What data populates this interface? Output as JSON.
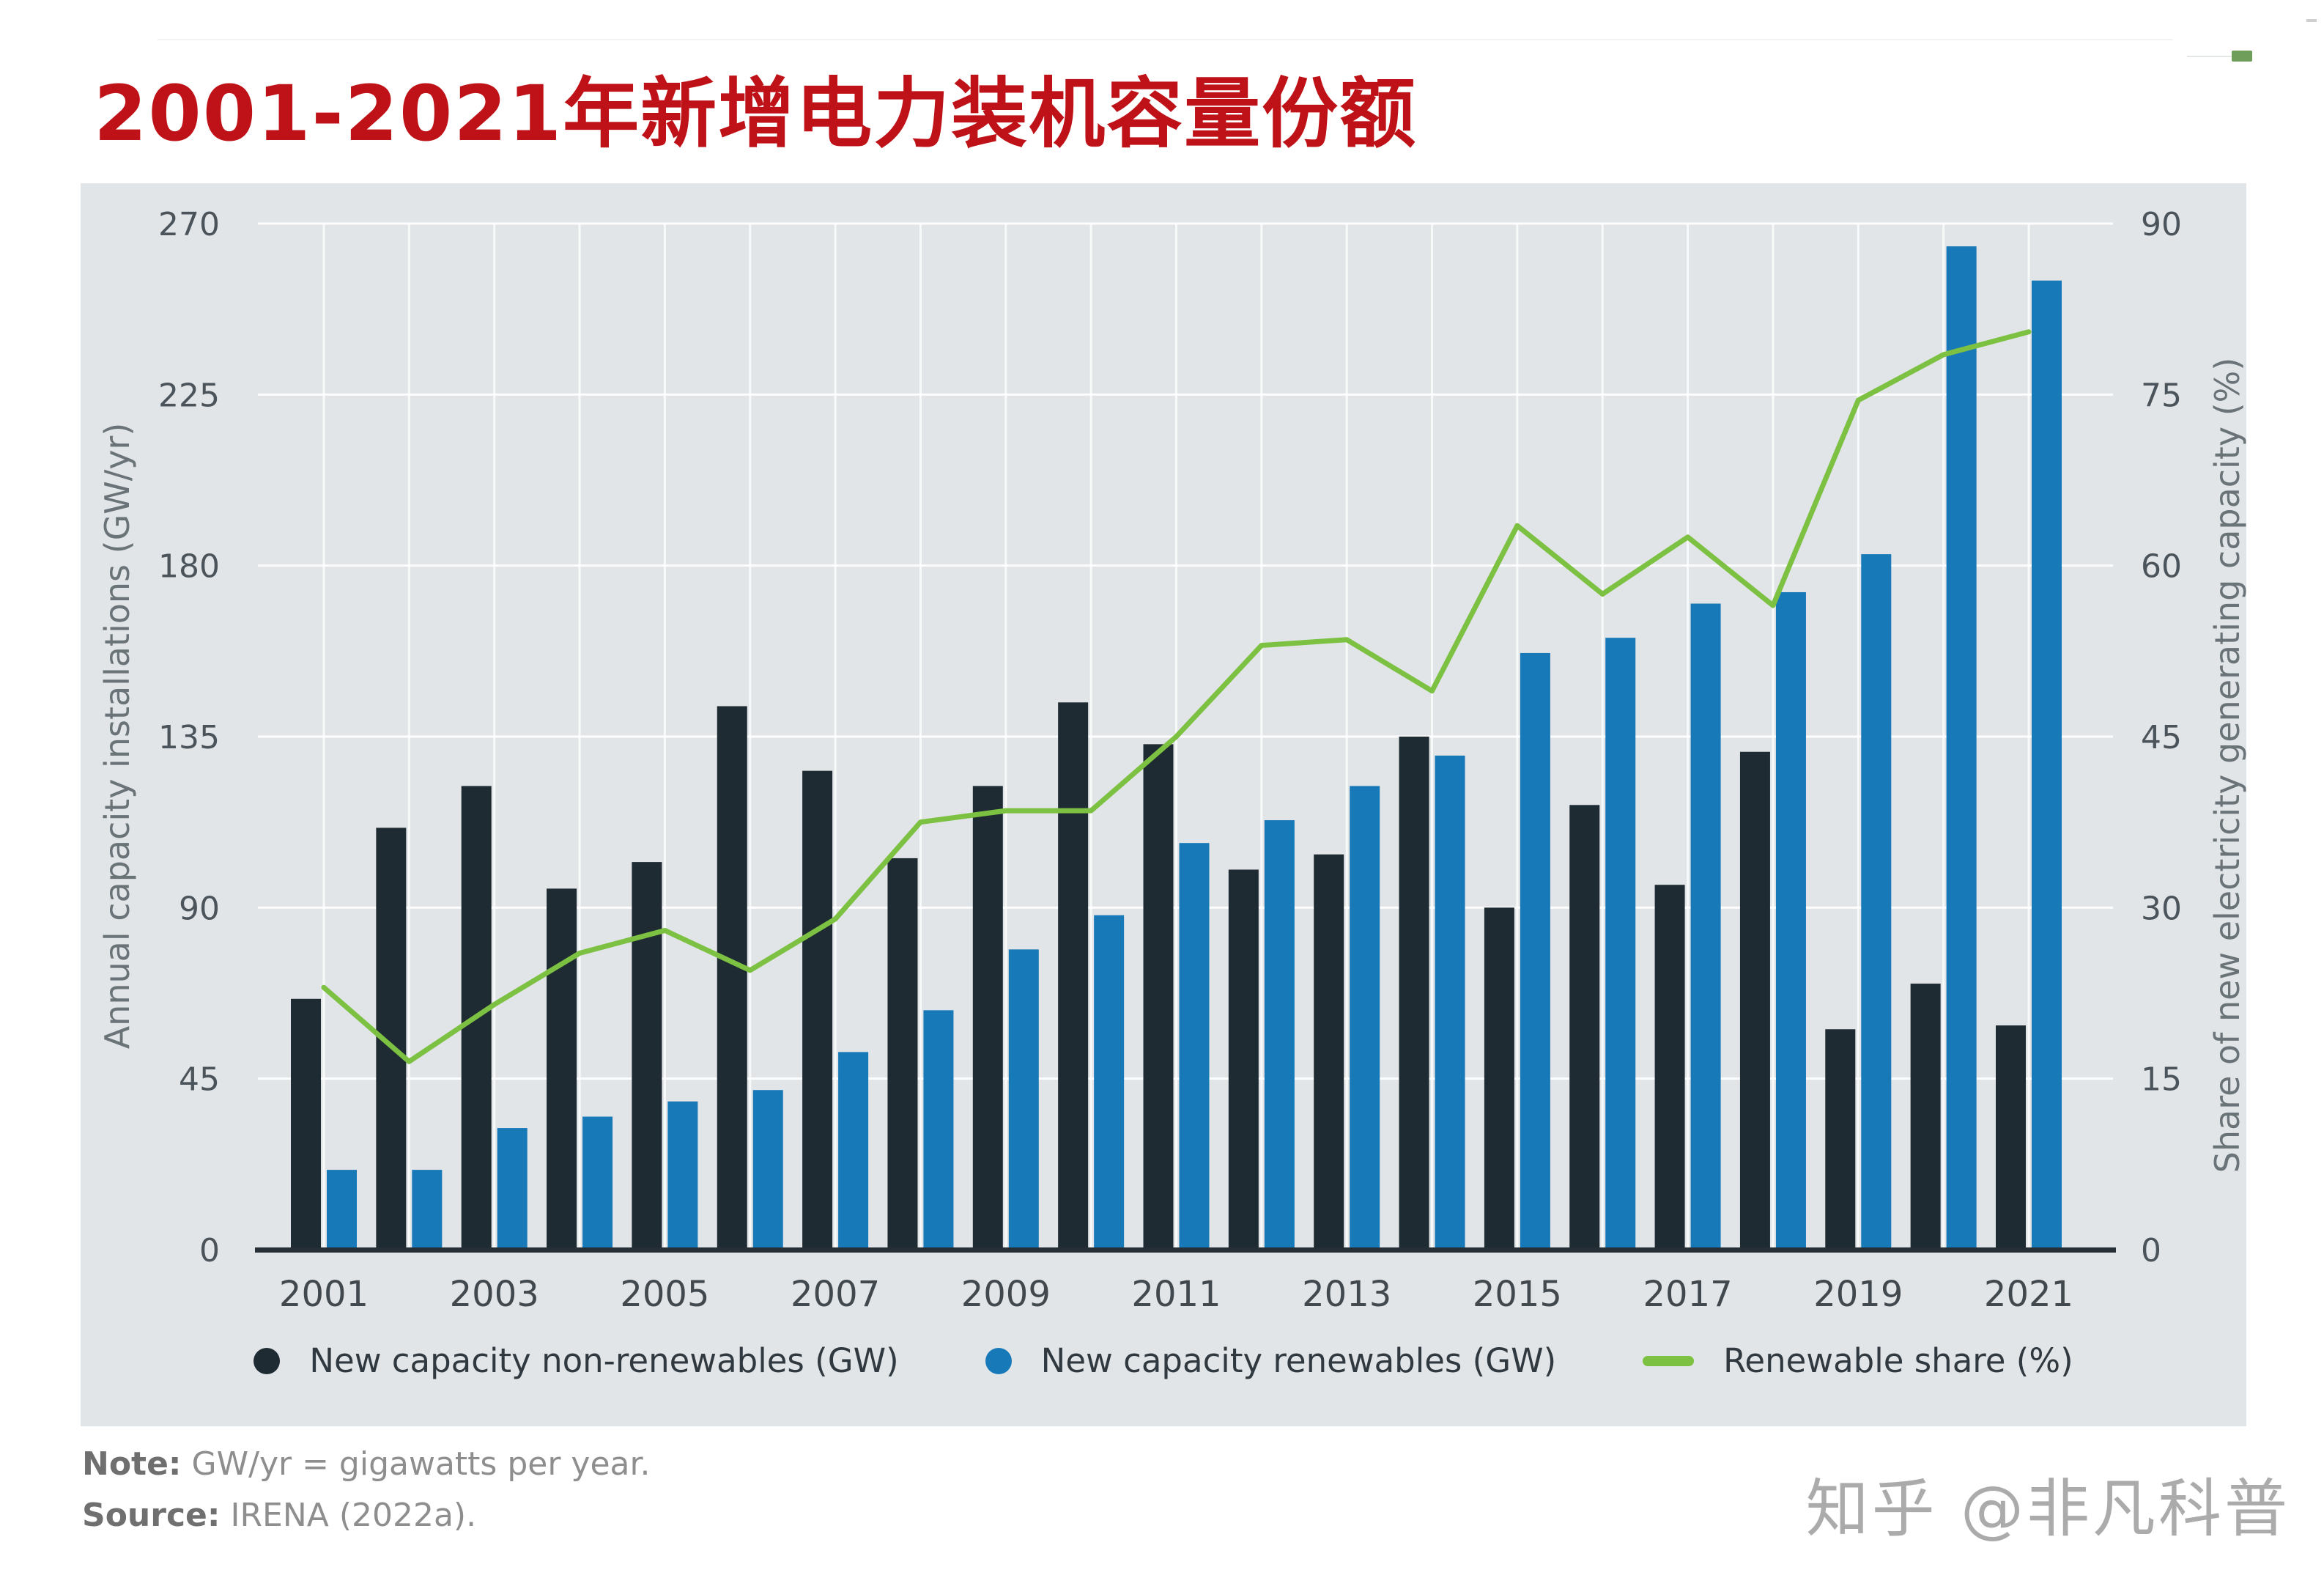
{
  "title": "2001-2021年新增电力装机容量份额",
  "colors": {
    "title_red": "#BF1218",
    "panel_bg": "#E2E5E8",
    "bar_non_renewables": "#1F2B33",
    "bar_renewables": "#1879B8",
    "share_line": "#7CC142",
    "axis_text": "#4B545A",
    "baseline": "#262F36"
  },
  "chart_data": {
    "type": "bar",
    "title": "2001-2021年新增电力装机容量份额",
    "categories": [
      2001,
      2002,
      2003,
      2004,
      2005,
      2006,
      2007,
      2008,
      2009,
      2010,
      2011,
      2012,
      2013,
      2014,
      2015,
      2016,
      2017,
      2018,
      2019,
      2020,
      2021
    ],
    "series": [
      {
        "name": "New capacity non-renewables (GW)",
        "type": "bar",
        "axis": "left",
        "color": "#1F2B33",
        "values": [
          66,
          111,
          122,
          95,
          102,
          143,
          126,
          103,
          122,
          144,
          133,
          100,
          104,
          135,
          90,
          117,
          96,
          131,
          58,
          70,
          59
        ]
      },
      {
        "name": "New capacity renewables (GW)",
        "type": "bar",
        "axis": "left",
        "color": "#1879B8",
        "values": [
          21,
          21,
          32,
          35,
          39,
          42,
          52,
          63,
          79,
          88,
          107,
          113,
          122,
          130,
          157,
          161,
          170,
          173,
          183,
          264,
          255
        ]
      },
      {
        "name": "Renewable share (%)",
        "type": "line",
        "axis": "right",
        "color": "#7CC142",
        "values": [
          23,
          16.5,
          21.5,
          26,
          28,
          24.5,
          29,
          37.5,
          38.5,
          38.5,
          45,
          53,
          53.5,
          49,
          63.5,
          57.5,
          62.5,
          56.5,
          74.5,
          78.5,
          80.5
        ]
      }
    ],
    "left_axis": {
      "label": "Annual capacity installations (GW/yr)",
      "ticks": [
        0,
        45,
        90,
        135,
        180,
        225,
        270
      ],
      "range": [
        0,
        270
      ]
    },
    "right_axis": {
      "label": "Share of new electricity generating capacity (%)",
      "ticks": [
        0,
        15,
        30,
        45,
        60,
        75,
        90
      ],
      "range": [
        0,
        90
      ]
    },
    "x_tick_labels": [
      "2001",
      "2003",
      "2005",
      "2007",
      "2009",
      "2011",
      "2013",
      "2015",
      "2017",
      "2019",
      "2021"
    ],
    "grid": "horizontal white gridlines on grey panel, white vertical line at each year-group centre",
    "legend_position": "bottom-center"
  },
  "legend": {
    "items": [
      {
        "label": "New capacity non-renewables (GW)",
        "marker": "dot",
        "color": "#1F2B33"
      },
      {
        "label": "New capacity renewables (GW)",
        "marker": "dot",
        "color": "#1879B8"
      },
      {
        "label": "Renewable share (%)",
        "marker": "dash",
        "color": "#7CC142"
      }
    ]
  },
  "note": {
    "label": "Note:",
    "text": "GW/yr = gigawatts per year."
  },
  "source": {
    "label": "Source:",
    "text": "IRENA (2022a)."
  },
  "watermark": "知乎 @非凡科普"
}
